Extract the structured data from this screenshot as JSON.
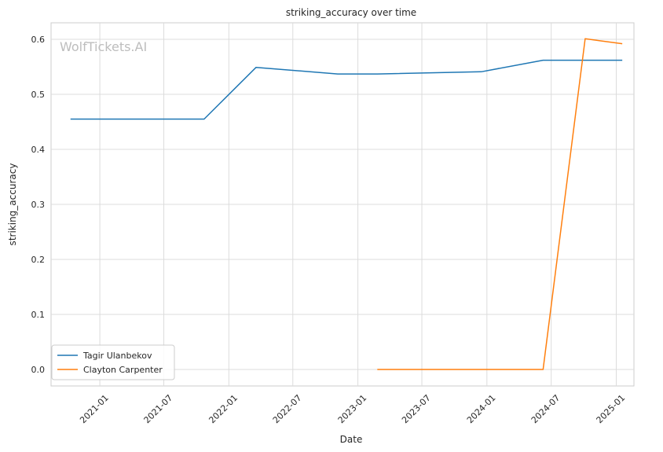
{
  "chart_data": {
    "type": "line",
    "title": "striking_accuracy over time",
    "xlabel": "Date",
    "ylabel": "striking_accuracy",
    "watermark": "WolfTickets.AI",
    "x_range": [
      "2020-08-16",
      "2025-02-20"
    ],
    "ylim": [
      -0.03,
      0.63
    ],
    "y_ticks": [
      0.0,
      0.1,
      0.2,
      0.3,
      0.4,
      0.5,
      0.6
    ],
    "y_tick_labels": [
      "0.0",
      "0.1",
      "0.2",
      "0.3",
      "0.4",
      "0.5",
      "0.6"
    ],
    "x_ticks": [
      "2021-01-01",
      "2021-07-01",
      "2022-01-01",
      "2022-07-01",
      "2023-01-01",
      "2023-07-01",
      "2024-01-01",
      "2024-07-01",
      "2025-01-01"
    ],
    "x_tick_labels": [
      "2021-01",
      "2021-07",
      "2022-01",
      "2022-07",
      "2023-01",
      "2023-07",
      "2024-01",
      "2024-07",
      "2025-01"
    ],
    "grid": true,
    "legend_position": "lower-left",
    "series": [
      {
        "name": "Tagir Ulanbekov",
        "color": "#1f77b4",
        "points": [
          {
            "x": "2020-10-10",
            "y": 0.455
          },
          {
            "x": "2021-10-23",
            "y": 0.455
          },
          {
            "x": "2022-03-19",
            "y": 0.549
          },
          {
            "x": "2022-11-05",
            "y": 0.537
          },
          {
            "x": "2023-02-25",
            "y": 0.537
          },
          {
            "x": "2023-12-16",
            "y": 0.541
          },
          {
            "x": "2024-06-08",
            "y": 0.562
          },
          {
            "x": "2024-10-05",
            "y": 0.562
          },
          {
            "x": "2025-01-18",
            "y": 0.562
          }
        ]
      },
      {
        "name": "Clayton Carpenter",
        "color": "#ff7f0e",
        "points": [
          {
            "x": "2023-02-25",
            "y": 0.0
          },
          {
            "x": "2024-06-08",
            "y": 0.0
          },
          {
            "x": "2024-10-05",
            "y": 0.601
          },
          {
            "x": "2025-01-18",
            "y": 0.592
          }
        ]
      }
    ]
  }
}
